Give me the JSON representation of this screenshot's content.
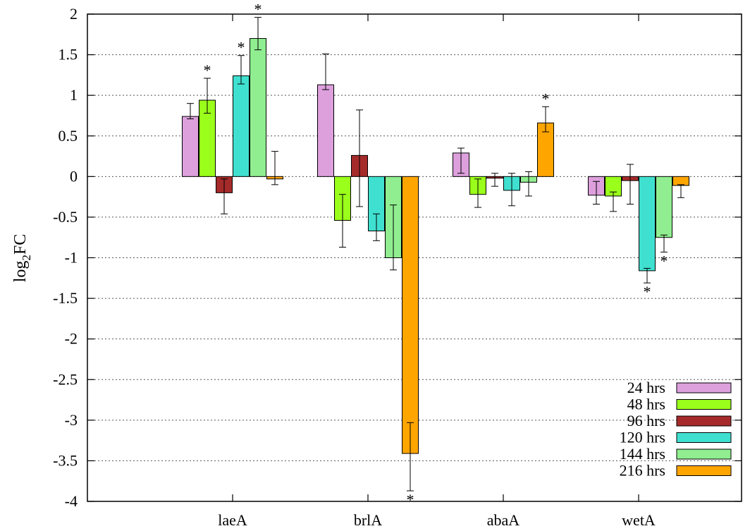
{
  "chart_data": {
    "type": "bar",
    "title": "",
    "xlabel": "",
    "ylabel_main": "log",
    "ylabel_sub": "2",
    "ylabel_suffix": "FC",
    "ylim": [
      -4,
      2
    ],
    "yticks": [
      2,
      1.5,
      1,
      0.5,
      0,
      -0.5,
      -1,
      -1.5,
      -2,
      -2.5,
      -3,
      -3.5,
      -4
    ],
    "ytick_labels": [
      "2",
      "1.5",
      "1",
      "0.5",
      "0",
      "-0.5",
      "-1",
      "-1.5",
      "-2",
      "-2.5",
      "-3",
      "-3.5",
      "-4"
    ],
    "grid": true,
    "legend_position": "bottom-right",
    "categories": [
      "laeA",
      "brlA",
      "abaA",
      "wetA"
    ],
    "series": [
      {
        "name": "24 hrs",
        "color": "#dda0dd",
        "values": [
          0.74,
          1.13,
          0.29,
          -0.23
        ],
        "err_low": [
          0.71,
          1.07,
          0.04,
          -0.34
        ],
        "err_high": [
          0.9,
          1.51,
          0.35,
          -0.06
        ],
        "significant": [
          false,
          false,
          false,
          false
        ]
      },
      {
        "name": "48 hrs",
        "color": "#9aff1a",
        "values": [
          0.94,
          -0.54,
          -0.22,
          -0.24
        ],
        "err_low": [
          0.78,
          -0.87,
          -0.38,
          -0.43
        ],
        "err_high": [
          1.21,
          -0.22,
          -0.03,
          -0.19
        ],
        "significant": [
          true,
          false,
          false,
          false
        ]
      },
      {
        "name": "96 hrs",
        "color": "#a52a2a",
        "values": [
          -0.2,
          0.26,
          -0.02,
          -0.05
        ],
        "err_low": [
          -0.46,
          -0.37,
          -0.12,
          -0.34
        ],
        "err_high": [
          -0.03,
          0.82,
          0.04,
          0.15
        ],
        "significant": [
          false,
          false,
          false,
          false
        ]
      },
      {
        "name": "120 hrs",
        "color": "#40e0d0",
        "values": [
          1.24,
          -0.67,
          -0.17,
          -1.16
        ],
        "err_low": [
          1.14,
          -0.79,
          -0.36,
          -1.31
        ],
        "err_high": [
          1.49,
          -0.46,
          0.04,
          -1.13
        ],
        "significant": [
          true,
          false,
          false,
          true
        ]
      },
      {
        "name": "144 hrs",
        "color": "#90ee90",
        "values": [
          1.7,
          -1.0,
          -0.07,
          -0.75
        ],
        "err_low": [
          1.56,
          -1.15,
          -0.24,
          -0.93
        ],
        "err_high": [
          1.96,
          -0.35,
          0.06,
          -0.72
        ],
        "significant": [
          true,
          false,
          false,
          true
        ]
      },
      {
        "name": "216 hrs",
        "color": "#ffa500",
        "values": [
          -0.03,
          -3.41,
          0.66,
          -0.11
        ],
        "err_low": [
          -0.1,
          -3.87,
          0.55,
          -0.26
        ],
        "err_high": [
          0.31,
          -3.03,
          0.86,
          -0.1
        ],
        "significant": [
          false,
          true,
          true,
          false
        ]
      }
    ],
    "significance_marker": "*"
  }
}
